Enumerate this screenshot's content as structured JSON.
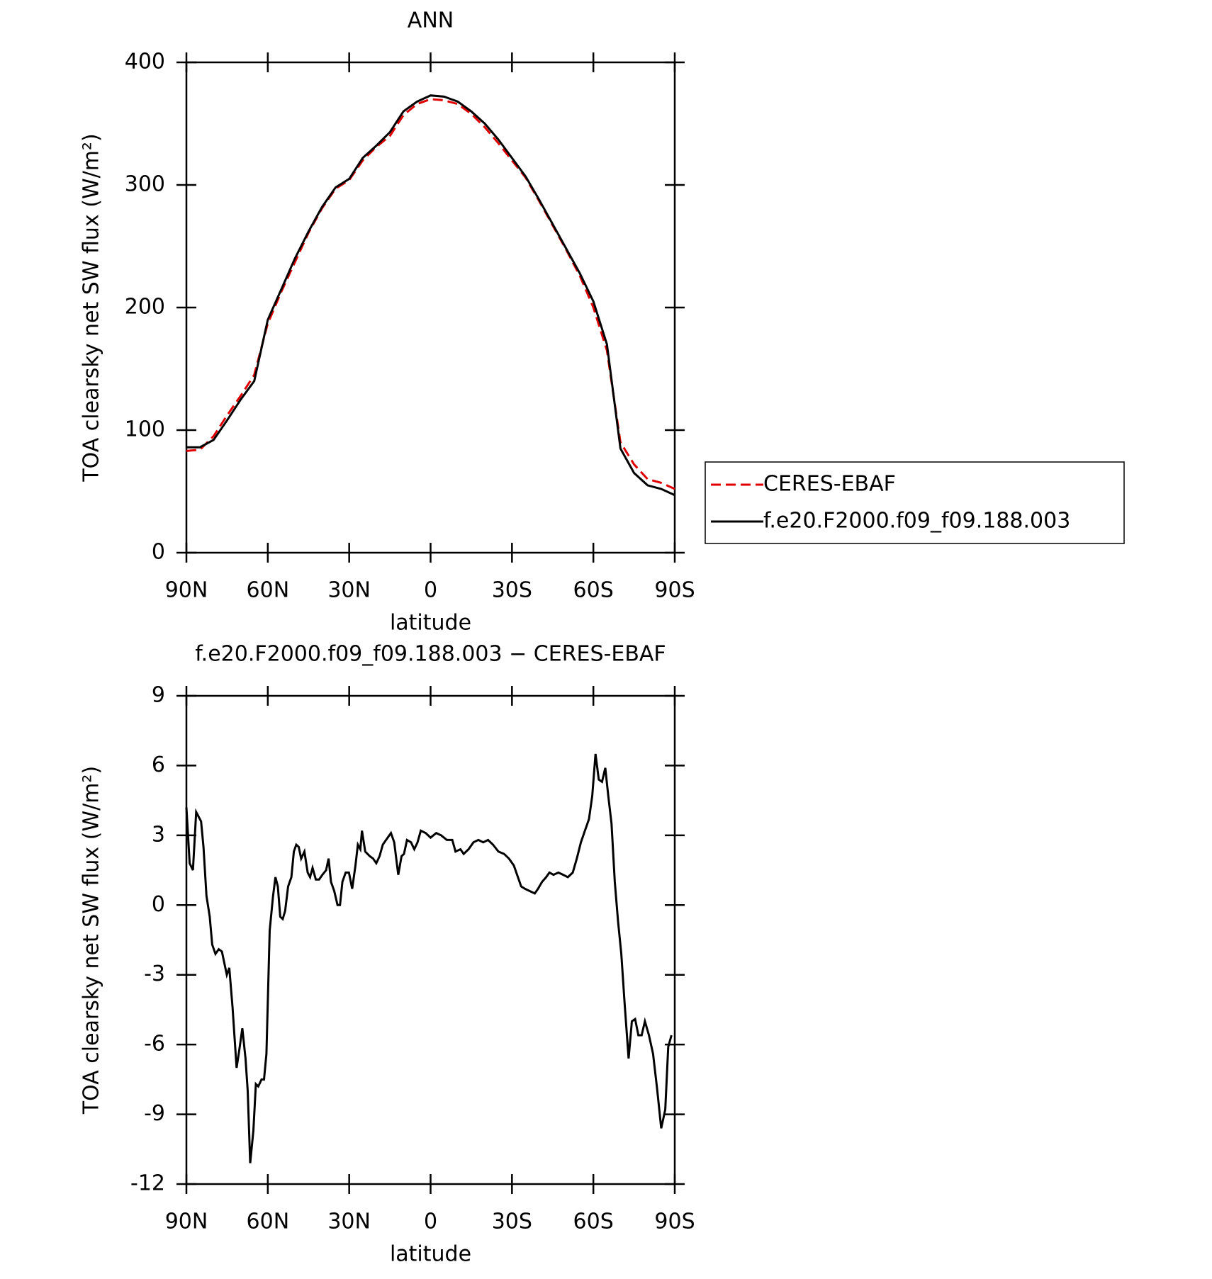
{
  "chart_data": [
    {
      "type": "line",
      "title": "ANN",
      "x_label": "latitude",
      "y_label": "TOA clearsky net SW flux (W/m²)",
      "x": [
        90,
        85,
        80,
        75,
        70,
        65,
        60,
        55,
        50,
        45,
        40,
        35,
        30,
        25,
        20,
        15,
        10,
        5,
        0,
        -5,
        -10,
        -15,
        -20,
        -25,
        -30,
        -35,
        -40,
        -45,
        -50,
        -55,
        -60,
        -65,
        -70,
        -75,
        -80,
        -85,
        -90
      ],
      "series": [
        {
          "name": "CERES-EBAF",
          "color": "#e00000",
          "dash": true,
          "values": [
            83,
            84,
            95,
            112,
            128,
            145,
            187,
            213,
            237,
            261,
            281,
            297,
            304,
            320,
            331,
            340,
            357,
            366,
            370,
            369,
            366,
            358,
            347,
            334,
            320,
            306,
            287,
            267,
            247,
            226,
            200,
            165,
            90,
            72,
            60,
            57,
            52
          ]
        },
        {
          "name": "f.e20.F2000.f09_f09.188.003",
          "color": "#000000",
          "dash": false,
          "values": [
            86,
            86,
            92,
            108,
            125,
            140,
            190,
            215,
            240,
            262,
            282,
            298,
            305,
            322,
            332,
            343,
            360,
            368,
            373,
            372,
            368,
            360,
            350,
            337,
            322,
            307,
            288,
            268,
            248,
            228,
            205,
            170,
            85,
            65,
            55,
            52,
            47
          ]
        }
      ],
      "xlim": [
        90,
        -90
      ],
      "xticks": [
        {
          "value": 90,
          "label": "90N"
        },
        {
          "value": 60,
          "label": "60N"
        },
        {
          "value": 30,
          "label": "30N"
        },
        0,
        {
          "value": -30,
          "label": "30S"
        },
        {
          "value": -60,
          "label": "60S"
        },
        {
          "value": -90,
          "label": "90S"
        }
      ],
      "ylim": [
        0,
        400
      ],
      "yticks": [
        0,
        100,
        200,
        300,
        400
      ],
      "legend": "right"
    },
    {
      "type": "line",
      "title": "f.e20.F2000.f09_f09.188.003 − CERES-EBAF",
      "x_label": "latitude",
      "y_label": "TOA clearsky net SW flux (W/m²)",
      "x": [
        90,
        88.8,
        87.6,
        86.4,
        84.6,
        83.7,
        82.6,
        81.4,
        80.5,
        79.3,
        78.1,
        76.9,
        75.1,
        74.2,
        73.0,
        71.5,
        70.6,
        69.4,
        68.2,
        67.4,
        66.5,
        65.3,
        64.4,
        63.5,
        62.3,
        61.4,
        60.5,
        59.3,
        58.1,
        57.2,
        56.3,
        55.4,
        54.5,
        53.6,
        52.5,
        51.3,
        50.4,
        49.5,
        48.6,
        47.7,
        46.5,
        45.3,
        44.4,
        43.5,
        42.3,
        41.1,
        39.9,
        38.5,
        37.6,
        36.7,
        35.5,
        34.3,
        33.4,
        32.5,
        31.3,
        30.1,
        28.9,
        27.7,
        26.8,
        25.9,
        25.3,
        24.1,
        22.4,
        21.2,
        20.0,
        18.8,
        17.6,
        16.4,
        14.6,
        13.4,
        11.9,
        10.7,
        9.8,
        8.7,
        7.2,
        6.0,
        4.8,
        3.6,
        1.8,
        0.0,
        -2.1,
        -3.9,
        -6.0,
        -8.0,
        -9.2,
        -11.0,
        -12.2,
        -14.0,
        -15.8,
        -17.6,
        -19.4,
        -21.2,
        -23.0,
        -25.0,
        -27.1,
        -28.9,
        -30.7,
        -31.9,
        -33.4,
        -34.8,
        -36.6,
        -38.4,
        -39.6,
        -41.1,
        -42.6,
        -43.8,
        -45.3,
        -47.1,
        -48.9,
        -50.6,
        -52.4,
        -53.9,
        -55.4,
        -56.9,
        -58.4,
        -59.6,
        -60.8,
        -62.0,
        -63.2,
        -64.4,
        -65.5,
        -66.7,
        -67.9,
        -69.1,
        -70.3,
        -71.5,
        -73.0,
        -74.2,
        -75.4,
        -76.6,
        -77.8,
        -79.0,
        -80.5,
        -82.0,
        -83.5,
        -85.0,
        -86.5,
        -87.6,
        -88.8
      ],
      "series": [
        {
          "color": "#000000",
          "dash": false,
          "values": [
            4.2,
            1.8,
            1.5,
            4.0,
            3.6,
            2.5,
            0.4,
            -0.5,
            -1.7,
            -2.1,
            -1.9,
            -2.0,
            -3.0,
            -2.7,
            -4.4,
            -7.0,
            -6.3,
            -5.3,
            -6.6,
            -8.0,
            -11.1,
            -9.7,
            -7.7,
            -7.8,
            -7.5,
            -7.5,
            -6.4,
            -1.1,
            0.35,
            1.2,
            0.8,
            -0.5,
            -0.6,
            -0.25,
            0.8,
            1.2,
            2.3,
            2.6,
            2.5,
            2.0,
            2.3,
            1.4,
            1.2,
            1.6,
            1.1,
            1.1,
            1.3,
            1.5,
            2.0,
            1.0,
            0.6,
            0.0,
            0.0,
            1.0,
            1.4,
            1.4,
            0.7,
            1.7,
            2.6,
            2.4,
            3.2,
            2.3,
            2.1,
            2.0,
            1.8,
            2.1,
            2.6,
            2.8,
            3.1,
            2.7,
            1.3,
            2.1,
            2.2,
            2.8,
            2.7,
            2.4,
            2.7,
            3.2,
            3.1,
            2.9,
            3.1,
            3.0,
            2.8,
            2.8,
            2.3,
            2.4,
            2.2,
            2.4,
            2.7,
            2.8,
            2.7,
            2.8,
            2.6,
            2.3,
            2.2,
            2.0,
            1.7,
            1.3,
            0.8,
            0.7,
            0.6,
            0.5,
            0.7,
            1.0,
            1.2,
            1.4,
            1.3,
            1.4,
            1.3,
            1.2,
            1.4,
            2.0,
            2.7,
            3.2,
            3.7,
            4.7,
            6.5,
            5.4,
            5.3,
            5.9,
            4.7,
            3.5,
            1.0,
            -0.7,
            -2.1,
            -4.2,
            -6.6,
            -5.0,
            -4.9,
            -5.6,
            -5.6,
            -5.0,
            -5.6,
            -6.4,
            -7.9,
            -9.6,
            -8.8,
            -6.1,
            -5.6
          ]
        }
      ],
      "xlim": [
        90,
        -90
      ],
      "xticks": [
        {
          "value": 90,
          "label": "90N"
        },
        {
          "value": 60,
          "label": "60N"
        },
        {
          "value": 30,
          "label": "30N"
        },
        0,
        {
          "value": -30,
          "label": "30S"
        },
        {
          "value": -60,
          "label": "60S"
        },
        {
          "value": -90,
          "label": "90S"
        }
      ],
      "ylim": [
        -12,
        9
      ],
      "yticks": [
        -12,
        -9,
        -6,
        -3,
        0,
        3,
        6,
        9
      ]
    }
  ]
}
